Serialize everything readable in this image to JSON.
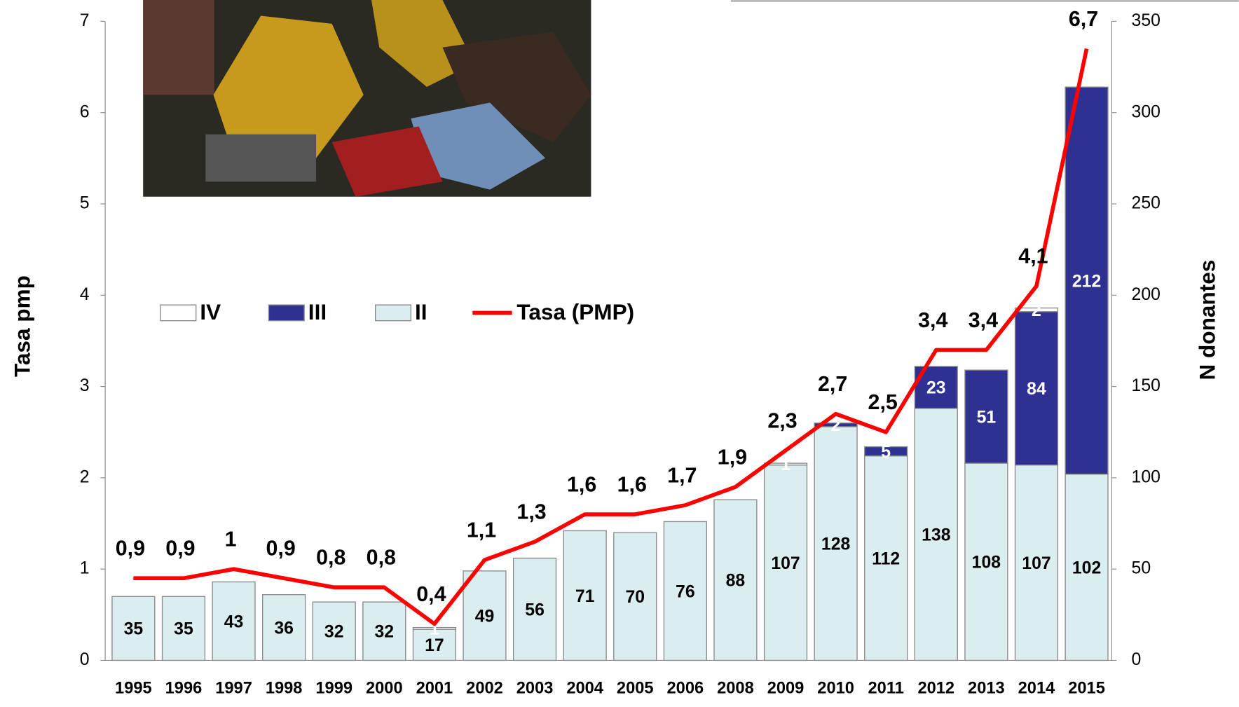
{
  "chart_data": {
    "type": "bar",
    "y_label": "Tasa pmp",
    "y2_label": "N donantes",
    "categories": [
      "1995",
      "1996",
      "1997",
      "1998",
      "1999",
      "2000",
      "2001",
      "2002",
      "2003",
      "2004",
      "2005",
      "2006",
      "2008",
      "2009",
      "2010",
      "2011",
      "2012",
      "2013",
      "2014",
      "2015"
    ],
    "series": [
      {
        "name": "IV",
        "color": "#ffffff",
        "axis": "y2",
        "values": [
          null,
          null,
          null,
          null,
          null,
          null,
          1,
          null,
          null,
          null,
          null,
          null,
          null,
          1,
          null,
          null,
          null,
          null,
          2,
          null
        ]
      },
      {
        "name": "III",
        "color": "#2e3192",
        "axis": "y2",
        "values": [
          null,
          null,
          null,
          null,
          null,
          null,
          null,
          null,
          null,
          null,
          null,
          null,
          null,
          null,
          2,
          5,
          23,
          51,
          84,
          212
        ]
      },
      {
        "name": "II",
        "color": "#daeef0",
        "axis": "y2",
        "values": [
          35,
          35,
          43,
          36,
          32,
          32,
          17,
          49,
          56,
          71,
          70,
          76,
          88,
          107,
          128,
          112,
          138,
          108,
          107,
          102
        ]
      },
      {
        "name": "Tasa (PMP)",
        "type": "line",
        "color": "#ff0000",
        "values": [
          0.9,
          0.9,
          1,
          0.9,
          0.8,
          0.8,
          0.4,
          1.1,
          1.3,
          1.6,
          1.6,
          1.7,
          1.9,
          2.3,
          2.7,
          2.5,
          3.4,
          3.4,
          4.1,
          6.7
        ],
        "value_labels": [
          "0,9",
          "0,9",
          "1",
          "0,9",
          "0,8",
          "0,8",
          "0,4",
          "1,1",
          "1,3",
          "1,6",
          "1,6",
          "1,7",
          "1,9",
          "2,3",
          "2,7",
          "2,5",
          "3,4",
          "3,4",
          "4,1",
          "6,7"
        ]
      }
    ],
    "ylim": [
      0,
      7
    ],
    "yticks": [
      0,
      1,
      2,
      3,
      4,
      5,
      6,
      7
    ],
    "y2lim": [
      0,
      350
    ],
    "y2ticks": [
      0,
      50,
      100,
      150,
      200,
      250,
      300,
      350
    ],
    "legend": "top-left",
    "grid": false
  }
}
